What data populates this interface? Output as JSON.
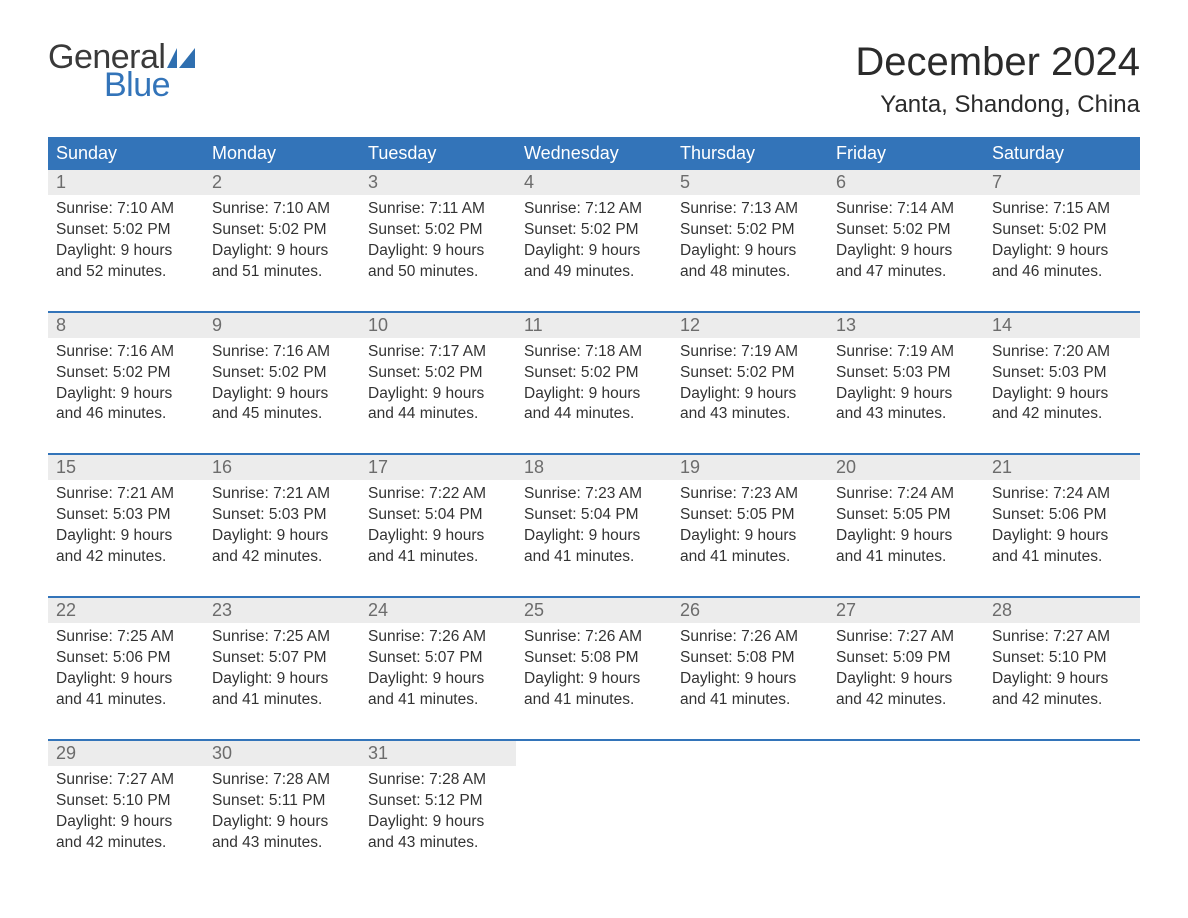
{
  "logo": {
    "text_general": "General",
    "text_blue": "Blue",
    "shape_color": "#2f6fb0"
  },
  "title": "December 2024",
  "location": "Yanta, Shandong, China",
  "colors": {
    "header_bg": "#3374b9",
    "header_text": "#ffffff",
    "daynum_bg": "#ececec",
    "daynum_text": "#6c6c6c",
    "body_text": "#333333",
    "rule": "#3374b9",
    "page_bg": "#ffffff"
  },
  "typography": {
    "title_fontsize": 40,
    "location_fontsize": 24,
    "header_fontsize": 18,
    "daynum_fontsize": 18,
    "body_fontsize": 15.5,
    "logo_fontsize": 34
  },
  "weekdays": [
    "Sunday",
    "Monday",
    "Tuesday",
    "Wednesday",
    "Thursday",
    "Friday",
    "Saturday"
  ],
  "weeks": [
    [
      {
        "n": "1",
        "sr": "Sunrise: 7:10 AM",
        "ss": "Sunset: 5:02 PM",
        "d1": "Daylight: 9 hours",
        "d2": "and 52 minutes."
      },
      {
        "n": "2",
        "sr": "Sunrise: 7:10 AM",
        "ss": "Sunset: 5:02 PM",
        "d1": "Daylight: 9 hours",
        "d2": "and 51 minutes."
      },
      {
        "n": "3",
        "sr": "Sunrise: 7:11 AM",
        "ss": "Sunset: 5:02 PM",
        "d1": "Daylight: 9 hours",
        "d2": "and 50 minutes."
      },
      {
        "n": "4",
        "sr": "Sunrise: 7:12 AM",
        "ss": "Sunset: 5:02 PM",
        "d1": "Daylight: 9 hours",
        "d2": "and 49 minutes."
      },
      {
        "n": "5",
        "sr": "Sunrise: 7:13 AM",
        "ss": "Sunset: 5:02 PM",
        "d1": "Daylight: 9 hours",
        "d2": "and 48 minutes."
      },
      {
        "n": "6",
        "sr": "Sunrise: 7:14 AM",
        "ss": "Sunset: 5:02 PM",
        "d1": "Daylight: 9 hours",
        "d2": "and 47 minutes."
      },
      {
        "n": "7",
        "sr": "Sunrise: 7:15 AM",
        "ss": "Sunset: 5:02 PM",
        "d1": "Daylight: 9 hours",
        "d2": "and 46 minutes."
      }
    ],
    [
      {
        "n": "8",
        "sr": "Sunrise: 7:16 AM",
        "ss": "Sunset: 5:02 PM",
        "d1": "Daylight: 9 hours",
        "d2": "and 46 minutes."
      },
      {
        "n": "9",
        "sr": "Sunrise: 7:16 AM",
        "ss": "Sunset: 5:02 PM",
        "d1": "Daylight: 9 hours",
        "d2": "and 45 minutes."
      },
      {
        "n": "10",
        "sr": "Sunrise: 7:17 AM",
        "ss": "Sunset: 5:02 PM",
        "d1": "Daylight: 9 hours",
        "d2": "and 44 minutes."
      },
      {
        "n": "11",
        "sr": "Sunrise: 7:18 AM",
        "ss": "Sunset: 5:02 PM",
        "d1": "Daylight: 9 hours",
        "d2": "and 44 minutes."
      },
      {
        "n": "12",
        "sr": "Sunrise: 7:19 AM",
        "ss": "Sunset: 5:02 PM",
        "d1": "Daylight: 9 hours",
        "d2": "and 43 minutes."
      },
      {
        "n": "13",
        "sr": "Sunrise: 7:19 AM",
        "ss": "Sunset: 5:03 PM",
        "d1": "Daylight: 9 hours",
        "d2": "and 43 minutes."
      },
      {
        "n": "14",
        "sr": "Sunrise: 7:20 AM",
        "ss": "Sunset: 5:03 PM",
        "d1": "Daylight: 9 hours",
        "d2": "and 42 minutes."
      }
    ],
    [
      {
        "n": "15",
        "sr": "Sunrise: 7:21 AM",
        "ss": "Sunset: 5:03 PM",
        "d1": "Daylight: 9 hours",
        "d2": "and 42 minutes."
      },
      {
        "n": "16",
        "sr": "Sunrise: 7:21 AM",
        "ss": "Sunset: 5:03 PM",
        "d1": "Daylight: 9 hours",
        "d2": "and 42 minutes."
      },
      {
        "n": "17",
        "sr": "Sunrise: 7:22 AM",
        "ss": "Sunset: 5:04 PM",
        "d1": "Daylight: 9 hours",
        "d2": "and 41 minutes."
      },
      {
        "n": "18",
        "sr": "Sunrise: 7:23 AM",
        "ss": "Sunset: 5:04 PM",
        "d1": "Daylight: 9 hours",
        "d2": "and 41 minutes."
      },
      {
        "n": "19",
        "sr": "Sunrise: 7:23 AM",
        "ss": "Sunset: 5:05 PM",
        "d1": "Daylight: 9 hours",
        "d2": "and 41 minutes."
      },
      {
        "n": "20",
        "sr": "Sunrise: 7:24 AM",
        "ss": "Sunset: 5:05 PM",
        "d1": "Daylight: 9 hours",
        "d2": "and 41 minutes."
      },
      {
        "n": "21",
        "sr": "Sunrise: 7:24 AM",
        "ss": "Sunset: 5:06 PM",
        "d1": "Daylight: 9 hours",
        "d2": "and 41 minutes."
      }
    ],
    [
      {
        "n": "22",
        "sr": "Sunrise: 7:25 AM",
        "ss": "Sunset: 5:06 PM",
        "d1": "Daylight: 9 hours",
        "d2": "and 41 minutes."
      },
      {
        "n": "23",
        "sr": "Sunrise: 7:25 AM",
        "ss": "Sunset: 5:07 PM",
        "d1": "Daylight: 9 hours",
        "d2": "and 41 minutes."
      },
      {
        "n": "24",
        "sr": "Sunrise: 7:26 AM",
        "ss": "Sunset: 5:07 PM",
        "d1": "Daylight: 9 hours",
        "d2": "and 41 minutes."
      },
      {
        "n": "25",
        "sr": "Sunrise: 7:26 AM",
        "ss": "Sunset: 5:08 PM",
        "d1": "Daylight: 9 hours",
        "d2": "and 41 minutes."
      },
      {
        "n": "26",
        "sr": "Sunrise: 7:26 AM",
        "ss": "Sunset: 5:08 PM",
        "d1": "Daylight: 9 hours",
        "d2": "and 41 minutes."
      },
      {
        "n": "27",
        "sr": "Sunrise: 7:27 AM",
        "ss": "Sunset: 5:09 PM",
        "d1": "Daylight: 9 hours",
        "d2": "and 42 minutes."
      },
      {
        "n": "28",
        "sr": "Sunrise: 7:27 AM",
        "ss": "Sunset: 5:10 PM",
        "d1": "Daylight: 9 hours",
        "d2": "and 42 minutes."
      }
    ],
    [
      {
        "n": "29",
        "sr": "Sunrise: 7:27 AM",
        "ss": "Sunset: 5:10 PM",
        "d1": "Daylight: 9 hours",
        "d2": "and 42 minutes."
      },
      {
        "n": "30",
        "sr": "Sunrise: 7:28 AM",
        "ss": "Sunset: 5:11 PM",
        "d1": "Daylight: 9 hours",
        "d2": "and 43 minutes."
      },
      {
        "n": "31",
        "sr": "Sunrise: 7:28 AM",
        "ss": "Sunset: 5:12 PM",
        "d1": "Daylight: 9 hours",
        "d2": "and 43 minutes."
      },
      null,
      null,
      null,
      null
    ]
  ]
}
